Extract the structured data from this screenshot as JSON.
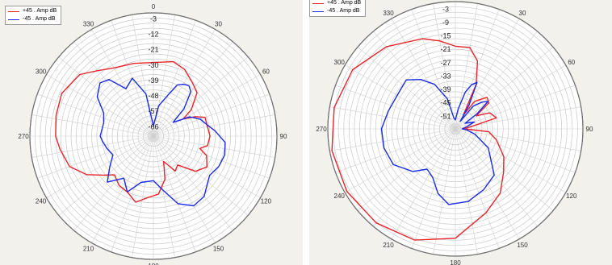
{
  "chart_data": [
    {
      "type": "polar-line",
      "angle_ticks": [
        "0",
        "30",
        "60",
        "90",
        "120",
        "150",
        "180",
        "210",
        "240",
        "270",
        "300",
        "330"
      ],
      "radial_ticks": [
        "-3",
        "-12",
        "-21",
        "-30",
        "-39",
        "-48",
        "-57",
        "-66"
      ],
      "r_range_db": [
        -72,
        0
      ],
      "grid": true,
      "legend_position": "top-left",
      "series": [
        {
          "name": "+45 . Amp dB",
          "color": "#e8232a",
          "points_deg_db": [
            [
              0,
              -29
            ],
            [
              15,
              -27
            ],
            [
              25,
              -29
            ],
            [
              35,
              -33
            ],
            [
              45,
              -36
            ],
            [
              55,
              -45
            ],
            [
              60,
              -52
            ],
            [
              65,
              -45
            ],
            [
              70,
              -40
            ],
            [
              80,
              -40
            ],
            [
              90,
              -39
            ],
            [
              100,
              -40
            ],
            [
              105,
              -44
            ],
            [
              110,
              -39
            ],
            [
              120,
              -36
            ],
            [
              130,
              -40
            ],
            [
              140,
              -50
            ],
            [
              148,
              -48
            ],
            [
              152,
              -52
            ],
            [
              158,
              -56
            ],
            [
              165,
              -46
            ],
            [
              175,
              -38
            ],
            [
              185,
              -36
            ],
            [
              195,
              -32
            ],
            [
              205,
              -36
            ],
            [
              215,
              -37
            ],
            [
              225,
              -40
            ],
            [
              232,
              -35
            ],
            [
              240,
              -27
            ],
            [
              250,
              -20
            ],
            [
              262,
              -17
            ],
            [
              270,
              -15
            ],
            [
              282,
              -14
            ],
            [
              295,
              -13
            ],
            [
              310,
              -16
            ],
            [
              320,
              -22
            ],
            [
              330,
              -26
            ],
            [
              345,
              -28
            ],
            [
              360,
              -29
            ]
          ]
        },
        {
          "name": "-45 . Amp dB",
          "color": "#1a2ae8",
          "points_deg_db": [
            [
              0,
              -66
            ],
            [
              10,
              -54
            ],
            [
              20,
              -46
            ],
            [
              25,
              -39
            ],
            [
              30,
              -37
            ],
            [
              35,
              -36
            ],
            [
              40,
              -38
            ],
            [
              48,
              -48
            ],
            [
              55,
              -58
            ],
            [
              62,
              -48
            ],
            [
              70,
              -43
            ],
            [
              78,
              -40
            ],
            [
              85,
              -36
            ],
            [
              95,
              -30
            ],
            [
              105,
              -29
            ],
            [
              115,
              -30
            ],
            [
              125,
              -32
            ],
            [
              140,
              -26
            ],
            [
              150,
              -25
            ],
            [
              160,
              -30
            ],
            [
              170,
              -40
            ],
            [
              180,
              -46
            ],
            [
              195,
              -44
            ],
            [
              205,
              -36
            ],
            [
              215,
              -42
            ],
            [
              225,
              -34
            ],
            [
              235,
              -41
            ],
            [
              245,
              -46
            ],
            [
              255,
              -44
            ],
            [
              265,
              -42
            ],
            [
              270,
              -41
            ],
            [
              285,
              -42
            ],
            [
              295,
              -40
            ],
            [
              305,
              -32
            ],
            [
              315,
              -28
            ],
            [
              322,
              -30
            ],
            [
              330,
              -40
            ],
            [
              340,
              -36
            ],
            [
              350,
              -47
            ],
            [
              360,
              -66
            ]
          ]
        }
      ]
    },
    {
      "type": "polar-line",
      "angle_ticks": [
        "330",
        "30",
        "60",
        "90",
        "120",
        "150",
        "180",
        "210",
        "240",
        "270",
        "300"
      ],
      "radial_ticks": [
        "-3",
        "-9",
        "-15",
        "-21",
        "-27",
        "-33",
        "-39",
        "-45",
        "-51"
      ],
      "r_range_db": [
        -57,
        0
      ],
      "grid": true,
      "legend_position": "top-left",
      "series": [
        {
          "name": "+45 . Amp dB",
          "color": "#e8232a",
          "points_deg_db": [
            [
              0,
              -20
            ],
            [
              10,
              -20
            ],
            [
              18,
              -25
            ],
            [
              25,
              -35
            ],
            [
              30,
              -50
            ],
            [
              35,
              -42
            ],
            [
              45,
              -37
            ],
            [
              52,
              -38
            ],
            [
              58,
              -46
            ],
            [
              65,
              -40
            ],
            [
              75,
              -38
            ],
            [
              82,
              -50
            ],
            [
              90,
              -53
            ],
            [
              95,
              -42
            ],
            [
              105,
              -38
            ],
            [
              120,
              -32
            ],
            [
              132,
              -28
            ],
            [
              145,
              -22
            ],
            [
              160,
              -17
            ],
            [
              180,
              -8
            ],
            [
              200,
              -4
            ],
            [
              220,
              -2
            ],
            [
              240,
              -1
            ],
            [
              260,
              -1
            ],
            [
              280,
              -2
            ],
            [
              300,
              -4
            ],
            [
              320,
              -9
            ],
            [
              340,
              -14
            ],
            [
              350,
              -17
            ],
            [
              360,
              -20
            ]
          ]
        },
        {
          "name": "-45 . Amp dB",
          "color": "#1a2ae8",
          "points_deg_db": [
            [
              0,
              -53
            ],
            [
              8,
              -48
            ],
            [
              15,
              -40
            ],
            [
              20,
              -36
            ],
            [
              25,
              -34
            ],
            [
              30,
              -45
            ],
            [
              33,
              -53
            ],
            [
              38,
              -44
            ],
            [
              45,
              -40
            ],
            [
              50,
              -38
            ],
            [
              55,
              -45
            ],
            [
              60,
              -52
            ],
            [
              70,
              -48
            ],
            [
              80,
              -52
            ],
            [
              90,
              -54
            ],
            [
              95,
              -52
            ],
            [
              105,
              -48
            ],
            [
              120,
              -40
            ],
            [
              140,
              -30
            ],
            [
              155,
              -27
            ],
            [
              170,
              -24
            ],
            [
              185,
              -23
            ],
            [
              195,
              -27
            ],
            [
              205,
              -33
            ],
            [
              215,
              -35
            ],
            [
              225,
              -30
            ],
            [
              240,
              -25
            ],
            [
              255,
              -24
            ],
            [
              270,
              -24
            ],
            [
              285,
              -26
            ],
            [
              300,
              -27
            ],
            [
              315,
              -26
            ],
            [
              325,
              -30
            ],
            [
              335,
              -35
            ],
            [
              345,
              -43
            ],
            [
              352,
              -52
            ],
            [
              360,
              -53
            ]
          ]
        }
      ]
    }
  ]
}
